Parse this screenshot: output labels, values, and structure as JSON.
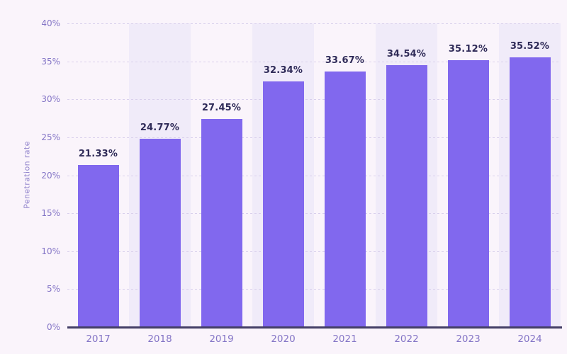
{
  "chart_data": {
    "type": "bar",
    "title": "",
    "xlabel": "",
    "ylabel": "Penetration rate",
    "categories": [
      "2017",
      "2018",
      "2019",
      "2020",
      "2021",
      "2022",
      "2023",
      "2024"
    ],
    "values": [
      21.33,
      24.77,
      27.45,
      32.34,
      33.67,
      34.54,
      35.12,
      35.52
    ],
    "value_labels": [
      "21.33%",
      "24.77%",
      "27.45%",
      "32.34%",
      "33.67%",
      "34.54%",
      "35.12%",
      "35.52%"
    ],
    "ylim": [
      0,
      40
    ],
    "ytick_labels": [
      "0%",
      "5%",
      "10%",
      "15%",
      "20%",
      "25%",
      "30%",
      "35%",
      "40%"
    ],
    "grid": "horizontal-dotted",
    "legend": "none",
    "background_bands": "alternating vertical bands behind 2018, 2020, 2022, 2024",
    "colors": {
      "background": "#faf4fb",
      "band": "#f0ebf9",
      "bar": "#8168ee",
      "grid": "#d9d0ec",
      "axis_line": "#433e66",
      "tick_text": "#8475c6",
      "value_text": "#2f2b58",
      "axis_title_text": "#9184cc"
    }
  }
}
